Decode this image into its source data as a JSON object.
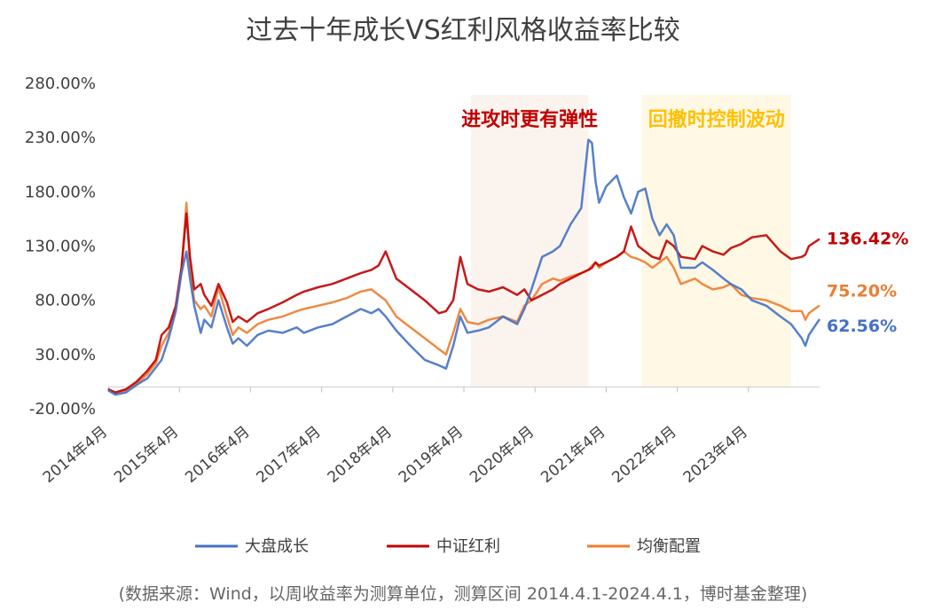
{
  "chart_data": {
    "type": "line",
    "title": "过去十年成长VS红利风格收益率比较",
    "xlabel": "",
    "ylabel": "",
    "ylim": [
      -20,
      280
    ],
    "yticks": [
      "-20.00%",
      "30.00%",
      "80.00%",
      "130.00%",
      "180.00%",
      "230.00%",
      "280.00%"
    ],
    "ytick_values": [
      -20,
      30,
      80,
      130,
      180,
      230,
      280
    ],
    "x_range": [
      2014.25,
      2024.25
    ],
    "xticks": [
      "2014年4月",
      "2015年4月",
      "2016年4月",
      "2017年4月",
      "2018年4月",
      "2019年4月",
      "2020年4月",
      "2021年4月",
      "2022年4月",
      "2023年4月"
    ],
    "xtick_values": [
      2014.25,
      2015.25,
      2016.25,
      2017.25,
      2018.25,
      2019.25,
      2020.25,
      2021.25,
      2022.25,
      2023.25
    ],
    "grid": false,
    "legend_position": "bottom",
    "colors": {
      "growth": "#4472C4",
      "dividend": "#C00000",
      "balanced": "#ED7D31",
      "shade_left": "#FBF3EE",
      "shade_right": "#FFF8E5",
      "anno_left": "#C00000",
      "anno_right": "#FFC000"
    },
    "series": [
      {
        "name": "大盘成长",
        "color": "#4472C4",
        "end_label": "62.56%",
        "x": [
          2014.25,
          2014.35,
          2014.5,
          2014.65,
          2014.8,
          2014.92,
          2015.0,
          2015.1,
          2015.2,
          2015.28,
          2015.35,
          2015.4,
          2015.46,
          2015.55,
          2015.6,
          2015.7,
          2015.8,
          2015.92,
          2016.0,
          2016.08,
          2016.2,
          2016.35,
          2016.5,
          2016.7,
          2016.9,
          2017.0,
          2017.2,
          2017.4,
          2017.6,
          2017.8,
          2017.95,
          2018.05,
          2018.15,
          2018.3,
          2018.5,
          2018.7,
          2018.9,
          2019.0,
          2019.1,
          2019.2,
          2019.3,
          2019.45,
          2019.6,
          2019.8,
          2020.0,
          2020.1,
          2020.2,
          2020.35,
          2020.5,
          2020.6,
          2020.75,
          2020.9,
          2021.0,
          2021.05,
          2021.1,
          2021.15,
          2021.25,
          2021.4,
          2021.5,
          2021.6,
          2021.7,
          2021.8,
          2021.9,
          2022.0,
          2022.1,
          2022.2,
          2022.3,
          2022.5,
          2022.6,
          2022.75,
          2022.9,
          2023.0,
          2023.15,
          2023.3,
          2023.5,
          2023.7,
          2023.85,
          2024.0,
          2024.05,
          2024.1,
          2024.25
        ],
        "y": [
          -3,
          -7,
          -5,
          2,
          8,
          18,
          25,
          45,
          70,
          105,
          125,
          100,
          75,
          50,
          62,
          55,
          80,
          55,
          40,
          45,
          38,
          48,
          52,
          50,
          55,
          50,
          55,
          58,
          65,
          72,
          68,
          72,
          65,
          52,
          38,
          25,
          20,
          17,
          38,
          65,
          50,
          52,
          55,
          65,
          58,
          72,
          90,
          120,
          125,
          130,
          150,
          165,
          228,
          225,
          190,
          170,
          185,
          195,
          175,
          160,
          180,
          183,
          155,
          140,
          150,
          140,
          110,
          110,
          115,
          108,
          100,
          95,
          90,
          80,
          75,
          65,
          58,
          45,
          38,
          48,
          62.56
        ]
      },
      {
        "name": "中证红利",
        "color": "#C00000",
        "end_label": "136.42%",
        "x": [
          2014.25,
          2014.35,
          2014.5,
          2014.65,
          2014.8,
          2014.92,
          2015.0,
          2015.1,
          2015.2,
          2015.28,
          2015.35,
          2015.4,
          2015.46,
          2015.55,
          2015.6,
          2015.7,
          2015.8,
          2015.92,
          2016.0,
          2016.08,
          2016.2,
          2016.35,
          2016.5,
          2016.7,
          2016.9,
          2017.0,
          2017.2,
          2017.4,
          2017.6,
          2017.8,
          2017.95,
          2018.05,
          2018.15,
          2018.3,
          2018.5,
          2018.7,
          2018.9,
          2019.0,
          2019.1,
          2019.2,
          2019.3,
          2019.45,
          2019.6,
          2019.8,
          2020.0,
          2020.1,
          2020.2,
          2020.35,
          2020.5,
          2020.6,
          2020.75,
          2020.9,
          2021.0,
          2021.05,
          2021.1,
          2021.15,
          2021.25,
          2021.4,
          2021.5,
          2021.6,
          2021.7,
          2021.8,
          2021.9,
          2022.0,
          2022.1,
          2022.2,
          2022.3,
          2022.5,
          2022.6,
          2022.75,
          2022.9,
          2023.0,
          2023.15,
          2023.3,
          2023.5,
          2023.7,
          2023.85,
          2024.0,
          2024.05,
          2024.1,
          2024.25
        ],
        "y": [
          -2,
          -5,
          -2,
          5,
          15,
          25,
          48,
          55,
          75,
          110,
          160,
          120,
          90,
          95,
          85,
          75,
          95,
          78,
          60,
          65,
          60,
          68,
          72,
          78,
          85,
          88,
          92,
          95,
          100,
          105,
          108,
          112,
          125,
          100,
          90,
          80,
          68,
          70,
          80,
          120,
          95,
          90,
          88,
          92,
          85,
          90,
          80,
          85,
          90,
          95,
          100,
          105,
          108,
          110,
          115,
          112,
          115,
          120,
          125,
          148,
          130,
          125,
          120,
          118,
          135,
          130,
          120,
          118,
          130,
          125,
          122,
          128,
          132,
          138,
          140,
          125,
          118,
          120,
          122,
          130,
          136.42
        ]
      },
      {
        "name": "均衡配置",
        "color": "#ED7D31",
        "end_label": "75.20%",
        "x": [
          2014.25,
          2014.35,
          2014.5,
          2014.65,
          2014.8,
          2014.92,
          2015.0,
          2015.1,
          2015.2,
          2015.28,
          2015.35,
          2015.4,
          2015.46,
          2015.55,
          2015.6,
          2015.7,
          2015.8,
          2015.92,
          2016.0,
          2016.08,
          2016.2,
          2016.35,
          2016.5,
          2016.7,
          2016.9,
          2017.0,
          2017.2,
          2017.4,
          2017.6,
          2017.8,
          2017.95,
          2018.05,
          2018.15,
          2018.3,
          2018.5,
          2018.7,
          2018.9,
          2019.0,
          2019.1,
          2019.2,
          2019.3,
          2019.45,
          2019.6,
          2019.8,
          2020.0,
          2020.1,
          2020.2,
          2020.35,
          2020.5,
          2020.6,
          2020.75,
          2020.9,
          2021.0,
          2021.05,
          2021.1,
          2021.15,
          2021.25,
          2021.4,
          2021.5,
          2021.6,
          2021.7,
          2021.8,
          2021.9,
          2022.0,
          2022.1,
          2022.2,
          2022.3,
          2022.5,
          2022.6,
          2022.75,
          2022.9,
          2023.0,
          2023.15,
          2023.3,
          2023.5,
          2023.7,
          2023.85,
          2024.0,
          2024.05,
          2024.1,
          2024.25
        ],
        "y": [
          -2,
          -6,
          -3,
          3,
          12,
          22,
          38,
          50,
          72,
          108,
          170,
          110,
          80,
          72,
          75,
          65,
          92,
          65,
          48,
          55,
          50,
          58,
          62,
          65,
          70,
          72,
          75,
          78,
          82,
          88,
          90,
          85,
          80,
          65,
          55,
          45,
          35,
          30,
          50,
          72,
          60,
          58,
          62,
          65,
          60,
          75,
          80,
          95,
          100,
          98,
          102,
          105,
          108,
          112,
          115,
          110,
          115,
          120,
          125,
          120,
          118,
          115,
          110,
          115,
          120,
          110,
          95,
          100,
          95,
          90,
          92,
          95,
          85,
          82,
          80,
          75,
          70,
          70,
          62,
          68,
          75.2
        ]
      }
    ],
    "shaded_regions": [
      {
        "x_start": 2019.35,
        "x_end": 2021.0,
        "label": "进攻时更有弹性",
        "color": "#FBF3EE",
        "label_color": "#C00000"
      },
      {
        "x_start": 2021.75,
        "x_end": 2023.85,
        "label": "回撤时控制波动",
        "color": "#FFF8E5",
        "label_color": "#FFC000"
      }
    ]
  },
  "source_note": "(数据来源：Wind，以周收益率为测算单位，测算区间 2014.4.1-2024.4.1，博时基金整理)"
}
